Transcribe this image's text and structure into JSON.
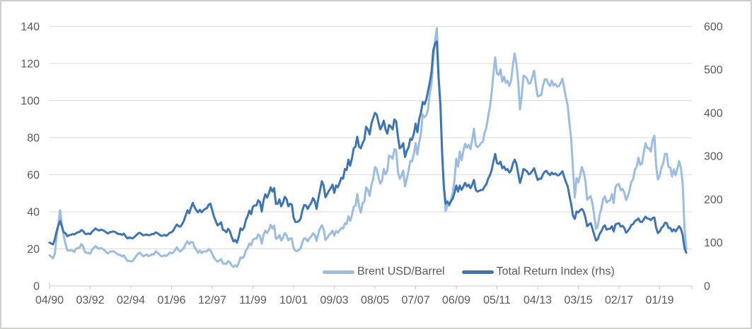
{
  "colors": {
    "brent_line": "#9CBCE0",
    "tri_line": "#3E75B1",
    "gridline": "#D9D9D9",
    "axis_line": "#C9C9C9",
    "axis_text": "#595959",
    "frame_border": "#D2CFCF",
    "background": "#FFFFFF"
  },
  "legend": {
    "items": [
      {
        "label": "Brent USD/Barrel"
      },
      {
        "label": "Total Return Index (rhs)"
      }
    ]
  },
  "chart_data": {
    "type": "line",
    "title": "",
    "grid": true,
    "legend_position": "inside-bottom-center",
    "frequency": "monthly",
    "left_axis": {
      "min": 0,
      "max": 140,
      "step": 20
    },
    "right_axis": {
      "min": 0,
      "max": 600,
      "step": 100
    },
    "x_tick_labels": [
      "04/90",
      "03/92",
      "02/94",
      "01/96",
      "12/97",
      "11/99",
      "10/01",
      "09/03",
      "08/05",
      "07/07",
      "06/09",
      "05/11",
      "04/13",
      "03/15",
      "02/17",
      "01/19"
    ],
    "x_tick_interval_months": 23,
    "series": [
      {
        "name": "Brent USD/Barrel",
        "axis": "left",
        "color": "#9CBCE0",
        "values": [
          16.5,
          15.8,
          15.0,
          17.3,
          26.5,
          33.5,
          40.9,
          33.0,
          27.0,
          23.0,
          19.2,
          19.1,
          19.2,
          19.1,
          18.3,
          20.0,
          20.5,
          20.6,
          22.6,
          21.4,
          18.4,
          17.9,
          17.8,
          17.4,
          19.5,
          20.5,
          21.5,
          20.6,
          20.0,
          20.5,
          20.0,
          19.3,
          18.3,
          17.5,
          18.4,
          18.7,
          18.6,
          18.3,
          17.4,
          16.9,
          16.7,
          15.9,
          16.5,
          15.0,
          13.5,
          13.6,
          13.2,
          13.4,
          14.8,
          16.0,
          17.4,
          18.0,
          17.0,
          16.0,
          16.5,
          17.0,
          16.1,
          16.5,
          17.1,
          17.0,
          18.6,
          18.0,
          17.0,
          16.1,
          16.0,
          16.6,
          16.1,
          17.0,
          18.0,
          17.5,
          18.0,
          19.5,
          20.8,
          19.2,
          18.6,
          19.7,
          20.6,
          22.6,
          24.1,
          22.6,
          23.7,
          23.6,
          20.9,
          19.5,
          17.9,
          19.1,
          17.7,
          18.6,
          18.6,
          18.7,
          19.9,
          19.1,
          17.2,
          15.2,
          14.1,
          13.1,
          13.6,
          14.5,
          12.2,
          12.0,
          12.0,
          13.4,
          12.7,
          11.1,
          10.2,
          11.1,
          10.3,
          12.5,
          15.3,
          15.0,
          15.9,
          19.1,
          20.5,
          22.9,
          22.0,
          24.9,
          25.5,
          25.5,
          27.8,
          27.0,
          22.8,
          27.5,
          29.8,
          28.5,
          30.1,
          32.9,
          31.0,
          32.5,
          25.5,
          25.8,
          27.4,
          24.5,
          26.0,
          28.5,
          27.5,
          24.6,
          25.6,
          25.6,
          20.5,
          18.9,
          18.8,
          19.4,
          20.3,
          23.7,
          25.7,
          25.4,
          24.1,
          25.7,
          26.6,
          28.4,
          27.5,
          24.3,
          28.3,
          31.1,
          32.7,
          30.5,
          24.9,
          25.8,
          27.5,
          28.4,
          29.8,
          27.1,
          29.6,
          28.7,
          29.9,
          31.3,
          30.9,
          33.8,
          33.4,
          37.6,
          35.1,
          38.3,
          42.7,
          43.2,
          49.6,
          43.1,
          39.6,
          44.5,
          45.5,
          53.1,
          51.9,
          48.6,
          54.4,
          57.5,
          64.1,
          62.9,
          58.5,
          55.2,
          56.9,
          63.1,
          60.2,
          62.1,
          70.4,
          69.8,
          68.6,
          73.7,
          73.2,
          61.7,
          57.8,
          59.4,
          62.3,
          53.7,
          57.6,
          62.1,
          67.5,
          67.2,
          71.1,
          77.0,
          70.8,
          77.2,
          82.3,
          92.4,
          91.0,
          92.0,
          95.0,
          103.7,
          109.1,
          122.8,
          132.3,
          139.0,
          113.2,
          98.1,
          71.9,
          52.5,
          40.4,
          43.6,
          43.2,
          46.5,
          50.2,
          57.3,
          68.6,
          64.4,
          72.5,
          67.7,
          72.8,
          76.7,
          74.5,
          76.2,
          73.7,
          78.8,
          84.8,
          75.9,
          74.8,
          75.6,
          77.1,
          77.8,
          82.7,
          85.3,
          91.4,
          96.5,
          104.0,
          114.6,
          123.3,
          114.5,
          113.8,
          116.8,
          110.2,
          112.8,
          109.5,
          110.7,
          107.9,
          110.7,
          119.3,
          125.4,
          119.7,
          110.3,
          95.2,
          102.6,
          113.4,
          112.9,
          111.7,
          109.1,
          109.5,
          112.9,
          116.1,
          108.5,
          102.3,
          102.6,
          102.9,
          107.9,
          111.3,
          111.6,
          109.1,
          107.8,
          110.8,
          108.1,
          108.9,
          107.5,
          107.8,
          109.5,
          111.8,
          106.8,
          101.6,
          97.1,
          87.4,
          79.0,
          62.3,
          47.8,
          58.1,
          55.9,
          59.5,
          64.1,
          61.5,
          56.6,
          46.5,
          47.6,
          48.4,
          44.3,
          38.0,
          30.7,
          32.2,
          38.2,
          41.6,
          46.7,
          48.3,
          44.9,
          45.8,
          46.2,
          49.5,
          44.7,
          53.3,
          54.6,
          54.9,
          51.6,
          52.3,
          50.3,
          46.4,
          48.5,
          51.7,
          56.2,
          57.5,
          62.7,
          64.4,
          69.1,
          65.3,
          66.0,
          72.1,
          76.9,
          74.4,
          74.2,
          72.5,
          78.9,
          81.0,
          64.8,
          57.4,
          59.4,
          63.9,
          66.1,
          71.2,
          71.3,
          64.2,
          63.9,
          59.0,
          62.8,
          59.7,
          63.2,
          67.3,
          63.7,
          55.5,
          32.0,
          20.0
        ]
      },
      {
        "name": "Total Return Index (rhs)",
        "axis": "right",
        "color": "#3E75B1",
        "values": [
          100,
          98,
          96,
          108,
          126,
          140,
          150,
          137,
          124,
          122,
          115,
          117,
          118,
          120,
          119,
          122,
          124,
          125,
          129,
          127,
          121,
          120,
          121,
          120,
          125,
          129,
          133,
          130,
          128,
          130,
          129,
          127,
          124,
          121,
          124,
          125,
          126,
          125,
          122,
          120,
          120,
          118,
          121,
          115,
          110,
          112,
          111,
          110,
          113,
          117,
          121,
          123,
          120,
          117,
          118,
          119,
          117,
          118,
          120,
          120,
          124,
          122,
          119,
          116,
          116,
          118,
          116,
          119,
          123,
          124,
          128,
          136,
          142,
          138,
          137,
          143,
          151,
          163,
          175,
          168,
          181,
          192,
          182,
          175,
          170,
          176,
          170,
          175,
          178,
          180,
          188,
          190,
          175,
          160,
          150,
          140,
          143,
          147,
          130,
          128,
          124,
          132,
          126,
          113,
          103,
          106,
          100,
          114,
          133,
          129,
          135,
          152,
          161,
          174,
          166,
          183,
          186,
          186,
          198,
          194,
          172,
          198,
          212,
          204,
          214,
          228,
          218,
          226,
          190,
          190,
          200,
          184,
          192,
          206,
          201,
          184,
          190,
          188,
          158,
          148,
          148,
          150,
          156,
          175,
          187,
          186,
          178,
          186,
          192,
          203,
          196,
          178,
          202,
          222,
          242,
          232,
          205,
          212,
          220,
          226,
          234,
          215,
          232,
          228,
          238,
          250,
          248,
          270,
          268,
          292,
          278,
          295,
          318,
          322,
          345,
          322,
          318,
          330,
          338,
          368,
          362,
          350,
          375,
          388,
          400,
          396,
          378,
          362,
          370,
          382,
          362,
          352,
          372,
          368,
          362,
          385,
          380,
          345,
          318,
          322,
          330,
          298,
          312,
          320,
          340,
          338,
          352,
          375,
          355,
          385,
          400,
          425,
          420,
          430,
          450,
          470,
          495,
          545,
          560,
          565,
          480,
          420,
          305,
          228,
          190,
          195,
          188,
          196,
          202,
          215,
          232,
          218,
          232,
          222,
          230,
          238,
          230,
          234,
          226,
          234,
          245,
          222,
          218,
          220,
          222,
          222,
          230,
          235,
          248,
          256,
          268,
          288,
          305,
          284,
          282,
          287,
          272,
          276,
          268,
          270,
          262,
          267,
          283,
          292,
          282,
          260,
          238,
          252,
          270,
          268,
          265,
          258,
          260,
          266,
          272,
          258,
          245,
          248,
          248,
          258,
          264,
          266,
          260,
          256,
          262,
          258,
          260,
          256,
          256,
          260,
          265,
          252,
          240,
          230,
          208,
          188,
          162,
          155,
          172,
          170,
          175,
          178,
          172,
          158,
          138,
          142,
          145,
          132,
          118,
          105,
          108,
          120,
          126,
          136,
          140,
          130,
          132,
          132,
          138,
          126,
          142,
          144,
          145,
          137,
          139,
          134,
          123,
          127,
          133,
          141,
          143,
          150,
          152,
          156,
          148,
          148,
          154,
          160,
          156,
          155,
          152,
          157,
          158,
          135,
          122,
          126,
          134,
          138,
          146,
          145,
          134,
          134,
          126,
          131,
          126,
          132,
          138,
          132,
          118,
          88,
          77
        ]
      }
    ]
  }
}
